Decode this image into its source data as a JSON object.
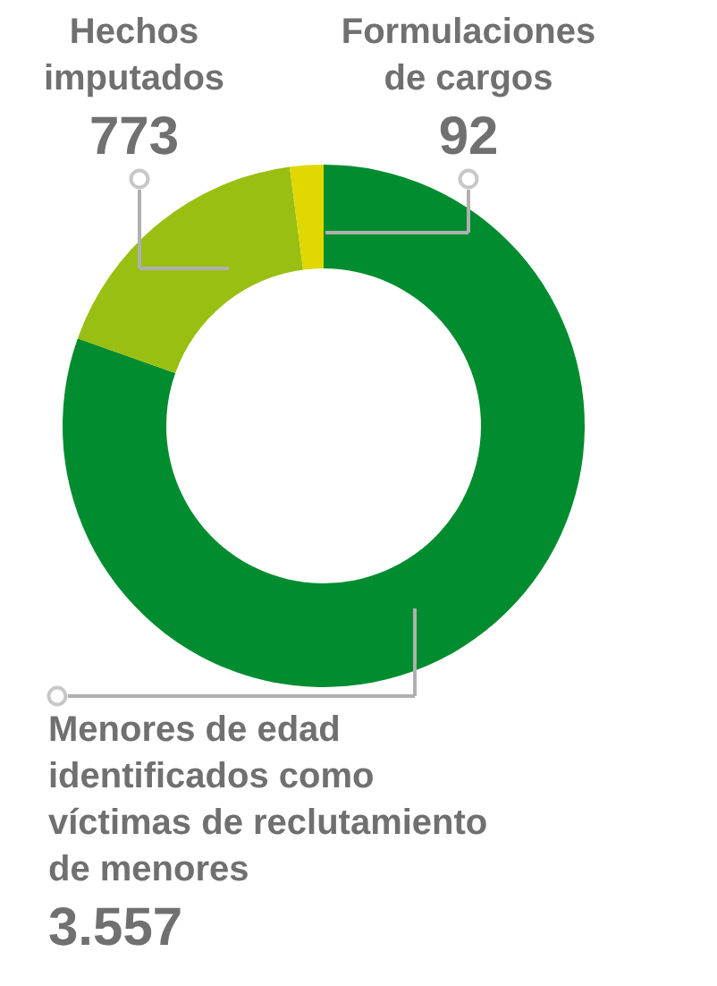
{
  "chart_data": {
    "type": "donut",
    "categories": [
      "Menores de edad identificados como víctimas de reclutamiento de menores",
      "Hechos imputados",
      "Formulaciones de cargos"
    ],
    "values": [
      3557,
      773,
      92
    ],
    "value_labels": [
      "3.557",
      "773",
      "92"
    ],
    "colors": [
      "#008c2f",
      "#99bf12",
      "#e0d800"
    ],
    "legend": false
  }
}
